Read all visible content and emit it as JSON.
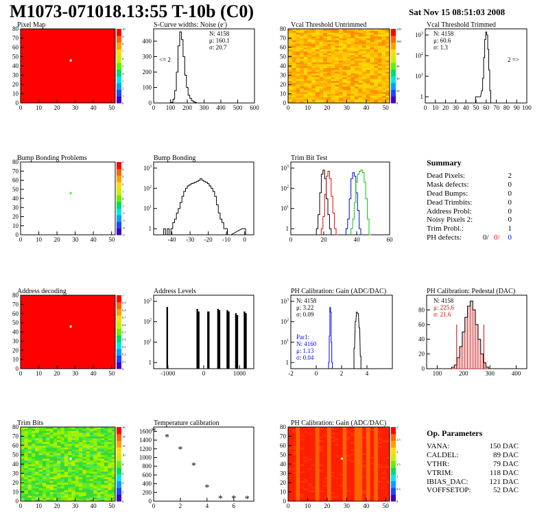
{
  "header": {
    "title": "M1073-071018.13:55 T-10b (C0)",
    "date": "Sat Nov 15 08:51:03 2008"
  },
  "colors": {
    "red": "#ff0000",
    "blue": "#0000ff",
    "green": "#00c800",
    "hatch": "#cc0000"
  },
  "panels": {
    "pixel_map": {
      "title": "Pixel Map",
      "zticks": [
        "10",
        "9",
        "8",
        "7",
        "6",
        "5",
        "4",
        "3",
        "2",
        "1",
        "0"
      ]
    },
    "scurve": {
      "title": "S-Curve widths: Noise (e",
      "stats": [
        "N: 4158",
        "μ: 160.1",
        "σ: 20.7"
      ],
      "underflow": "<= 2"
    },
    "vcal_untrimmed": {
      "title": "Vcal Threshold Untrimmed",
      "zticks": [
        "120",
        "100",
        "80",
        "60",
        "40",
        "20",
        "0"
      ]
    },
    "vcal_trimmed": {
      "title": "Vcal Threshold Trimmed",
      "stats": [
        "N: 4158",
        "μ: 60.6",
        "σ:  1.3"
      ],
      "overflow": "2 =>"
    },
    "bump_problems": {
      "title": "Bump Bonding Problems",
      "zticks": [
        "5",
        "4",
        "3",
        "2",
        "1",
        "0",
        "-1",
        "-2",
        "-3",
        "-4",
        "-5"
      ]
    },
    "bump_bonding": {
      "title": "Bump Bonding"
    },
    "trim_bit_test": {
      "title": "Trim Bit Test"
    },
    "address_decoding": {
      "title": "Address decoding",
      "zticks": [
        "1",
        "0.9",
        "0.8",
        "0.7",
        "0.6",
        "0.5",
        "0.4",
        "0.3",
        "0.2",
        "0.1",
        "0"
      ]
    },
    "address_levels": {
      "title": "Address Levels"
    },
    "ph_gain": {
      "title": "PH Calibration: Gain (ADC/DAC)",
      "stats": [
        "N: 4158",
        "μ: 3.22",
        "σ: 0.09"
      ],
      "par1": [
        "Par1:",
        "N: 4160",
        "μ: 1.13",
        "σ: 0.04"
      ]
    },
    "ph_pedestal": {
      "title": "PH Calibration: Pedestal (DAC)",
      "stats": [
        "N: 4158",
        "μ: 225.6",
        "σ: 21.6"
      ]
    },
    "trim_bits": {
      "title": "Trim Bits",
      "zticks": [
        "16",
        "14",
        "12",
        "10",
        "8",
        "6",
        "4",
        "2",
        "0"
      ]
    },
    "temperature": {
      "title": "Temperature calibration"
    },
    "ph_gain_map": {
      "title": "PH Calibration: Gain (ADC/DAC)",
      "zticks": [
        "3",
        "2.5",
        "2",
        "1.5",
        "1",
        "0.5",
        "0"
      ]
    }
  },
  "summary": {
    "title": "Summary",
    "items": [
      {
        "label": "Dead Pixels:",
        "value": "2"
      },
      {
        "label": "Mask defects:",
        "value": "0"
      },
      {
        "label": "Dead Bumps:",
        "value": "0"
      },
      {
        "label": "Dead Trimbits:",
        "value": "0"
      },
      {
        "label": "Address Probl:",
        "value": "0"
      },
      {
        "label": "Noisy Pixels 2:",
        "value": "0"
      },
      {
        "label": "Trim Probl.:",
        "value": "1"
      }
    ],
    "ph_label": "PH defects:",
    "ph_values": [
      "0/",
      "0/",
      "0"
    ]
  },
  "op_params": {
    "title": "Op. Parameters",
    "items": [
      {
        "label": "VANA:",
        "value": "150 DAC"
      },
      {
        "label": "CALDEL:",
        "value": "89 DAC"
      },
      {
        "label": "VTHR:",
        "value": "79 DAC"
      },
      {
        "label": "VTRIM:",
        "value": "118 DAC"
      },
      {
        "label": "IBIAS_DAC:",
        "value": "121 DAC"
      },
      {
        "label": "VOFFSETOP:",
        "value": "52 DAC"
      }
    ]
  },
  "chart_data": [
    {
      "id": "pixel_map",
      "type": "heatmap",
      "title": "Pixel Map",
      "xlim": [
        0,
        52
      ],
      "ylim": [
        0,
        80
      ],
      "xticks": [
        0,
        10,
        20,
        30,
        40,
        50
      ],
      "yticks": [
        0,
        10,
        20,
        30,
        40,
        50,
        60,
        70,
        80
      ],
      "zlim": [
        0,
        10
      ],
      "fill": "uniform red (all pixels alive)",
      "marked_pixel": {
        "col": 27,
        "row": 46,
        "color": "white"
      }
    },
    {
      "id": "scurve",
      "type": "histogram",
      "xlim": [
        0,
        600
      ],
      "ylim": [
        0,
        480
      ],
      "xticks": [
        0,
        100,
        200,
        300,
        400,
        500,
        600
      ],
      "yticks": [
        0,
        100,
        200,
        300,
        400
      ],
      "x": [
        100,
        110,
        120,
        130,
        140,
        150,
        160,
        170,
        180,
        190,
        200,
        210,
        220,
        230,
        240,
        250,
        260
      ],
      "values": [
        0,
        5,
        25,
        80,
        200,
        370,
        460,
        410,
        300,
        180,
        100,
        50,
        30,
        15,
        8,
        4,
        0
      ]
    },
    {
      "id": "vcal_untrimmed",
      "type": "heatmap",
      "xlim": [
        0,
        52
      ],
      "ylim": [
        0,
        80
      ],
      "xticks": [
        0,
        10,
        20,
        30,
        40,
        50
      ],
      "yticks": [
        0,
        10,
        20,
        30,
        40,
        50,
        60,
        70,
        80
      ],
      "zlim": [
        0,
        130
      ],
      "fill": "orange/yellow noise"
    },
    {
      "id": "vcal_trimmed",
      "type": "histogram",
      "log_y": true,
      "xlim": [
        0,
        100
      ],
      "ylim": [
        0.5,
        2000
      ],
      "xticks": [
        0,
        10,
        20,
        30,
        40,
        50,
        60,
        70,
        80,
        90,
        100
      ],
      "x": [
        50,
        52,
        54,
        56,
        57,
        58,
        59,
        60,
        61,
        62,
        63,
        64,
        65
      ],
      "values": [
        1,
        1,
        1,
        2,
        8,
        80,
        600,
        1400,
        1000,
        200,
        20,
        2,
        0
      ]
    },
    {
      "id": "bump_problems",
      "type": "heatmap",
      "xlim": [
        0,
        52
      ],
      "ylim": [
        0,
        80
      ],
      "xticks": [
        0,
        10,
        20,
        30,
        40,
        50
      ],
      "yticks": [
        0,
        10,
        20,
        30,
        40,
        50,
        60,
        70,
        80
      ],
      "zlim": [
        -5,
        5
      ],
      "fill": "white",
      "marked_pixel": {
        "col": 27,
        "row": 46,
        "color": "#44ee44"
      }
    },
    {
      "id": "bump_bonding",
      "type": "histogram",
      "log_y": true,
      "xlim": [
        -50,
        5
      ],
      "ylim": [
        0.5,
        2000
      ],
      "xticks": [
        -40,
        -30,
        -20,
        -10,
        0
      ],
      "x": [
        -44,
        -43,
        -42,
        -41,
        -40,
        -39,
        -38,
        -37,
        -36,
        -35,
        -34,
        -33,
        -32,
        -31,
        -30,
        -29,
        -28,
        -27,
        -26,
        -25,
        -24,
        -23,
        -22,
        -21,
        -20,
        -19,
        -18,
        -17,
        -16,
        -15,
        -14,
        -13,
        -12,
        -11,
        -10,
        -9,
        -8,
        -1,
        0
      ],
      "values": [
        1,
        0,
        1,
        0,
        1,
        2,
        3,
        6,
        10,
        20,
        40,
        70,
        100,
        130,
        150,
        170,
        180,
        200,
        220,
        250,
        300,
        250,
        220,
        200,
        170,
        130,
        100,
        70,
        40,
        15,
        6,
        3,
        2,
        1,
        1,
        0,
        0,
        1,
        1
      ]
    },
    {
      "id": "trim_bit_test",
      "type": "histogram",
      "log_y": true,
      "xlim": [
        0,
        60
      ],
      "ylim": [
        0.5,
        2000
      ],
      "xticks": [
        0,
        20,
        40,
        60
      ],
      "series": [
        {
          "color": "black",
          "x": [
            16,
            17,
            18,
            19,
            20,
            21,
            22,
            23,
            24,
            25
          ],
          "values": [
            1,
            5,
            60,
            500,
            800,
            300,
            30,
            5,
            1,
            0
          ]
        },
        {
          "color": "red",
          "x": [
            19,
            20,
            21,
            22,
            23,
            24,
            25,
            26,
            27,
            28
          ],
          "values": [
            1,
            4,
            50,
            400,
            700,
            300,
            40,
            6,
            1,
            0
          ]
        },
        {
          "color": "blue",
          "x": [
            34,
            35,
            36,
            37,
            38,
            39,
            40,
            41,
            42,
            43
          ],
          "values": [
            1,
            3,
            30,
            300,
            600,
            400,
            60,
            8,
            1,
            0
          ]
        },
        {
          "color": "green",
          "x": [
            37,
            38,
            39,
            40,
            41,
            42,
            43,
            44,
            45,
            46,
            47,
            48
          ],
          "values": [
            1,
            3,
            20,
            200,
            500,
            700,
            800,
            600,
            200,
            30,
            3,
            0
          ]
        }
      ]
    },
    {
      "id": "address_decoding",
      "type": "heatmap",
      "xlim": [
        0,
        52
      ],
      "ylim": [
        0,
        80
      ],
      "xticks": [
        0,
        10,
        20,
        30,
        40,
        50
      ],
      "yticks": [
        0,
        10,
        20,
        30,
        40,
        50,
        60,
        70,
        80
      ],
      "zlim": [
        0,
        1
      ],
      "fill": "uniform red",
      "marked_pixel": {
        "col": 27,
        "row": 46,
        "color": "white"
      }
    },
    {
      "id": "address_levels",
      "type": "histogram",
      "log_y": true,
      "xlim": [
        -1400,
        1400
      ],
      "ylim": [
        0.5,
        2000
      ],
      "xticks": [
        -1000,
        0,
        1000
      ],
      "x": [
        -1020,
        -180,
        -140,
        120,
        140,
        400,
        440,
        660,
        700,
        900,
        940,
        1140,
        1180
      ],
      "values": [
        500,
        400,
        300,
        300,
        300,
        400,
        350,
        350,
        300,
        250,
        200,
        300,
        250
      ]
    },
    {
      "id": "ph_gain",
      "type": "histogram",
      "log_y": true,
      "xlim": [
        -2,
        6
      ],
      "ylim": [
        0.5,
        2000
      ],
      "xticks": [
        -2,
        0,
        2,
        4
      ],
      "series": [
        {
          "name": "Par1",
          "color": "blue",
          "x": [
            1.0,
            1.05,
            1.1,
            1.15,
            1.2,
            1.25
          ],
          "values": [
            1,
            20,
            500,
            300,
            10,
            1
          ]
        },
        {
          "color": "black",
          "x": [
            3.0,
            3.1,
            3.2,
            3.3,
            3.4,
            3.5
          ],
          "values": [
            5,
            100,
            300,
            250,
            50,
            2
          ]
        }
      ]
    },
    {
      "id": "ph_pedestal",
      "type": "histogram",
      "xlim": [
        60,
        440
      ],
      "ylim": [
        0,
        100
      ],
      "xticks": [
        100,
        200,
        300,
        400
      ],
      "yticks": [
        0,
        20,
        40,
        60,
        80
      ],
      "x": [
        160,
        170,
        180,
        190,
        200,
        210,
        220,
        230,
        240,
        250,
        260,
        270,
        280,
        290
      ],
      "values": [
        2,
        5,
        15,
        30,
        50,
        70,
        85,
        92,
        80,
        60,
        40,
        20,
        8,
        2
      ],
      "fit_color": "red",
      "range_markers": [
        174,
        277
      ]
    },
    {
      "id": "trim_bits",
      "type": "heatmap",
      "xlim": [
        0,
        52
      ],
      "ylim": [
        0,
        80
      ],
      "xticks": [
        0,
        10,
        20,
        30,
        40,
        50
      ],
      "yticks": [
        0,
        10,
        20,
        30,
        40,
        50,
        60,
        70,
        80
      ],
      "zlim": [
        0,
        16
      ],
      "fill": "green/yellow noise",
      "marked_pixel": {
        "col": 27,
        "row": 46,
        "color": "white"
      }
    },
    {
      "id": "temperature",
      "type": "scatter",
      "xlim": [
        0,
        7.5
      ],
      "ylim": [
        0,
        1700
      ],
      "xticks": [
        0,
        2,
        4,
        6
      ],
      "yticks": [
        0,
        200,
        400,
        600,
        800,
        1000,
        1200,
        1400,
        1600
      ],
      "x": [
        0,
        1,
        2,
        3,
        4,
        5,
        6,
        7
      ],
      "values": [
        1620,
        1480,
        1200,
        830,
        320,
        70,
        70,
        60
      ]
    },
    {
      "id": "ph_gain_map",
      "type": "heatmap",
      "xlim": [
        0,
        52
      ],
      "ylim": [
        0,
        80
      ],
      "xticks": [
        0,
        10,
        20,
        30,
        40,
        50
      ],
      "yticks": [
        0,
        10,
        20,
        30,
        40,
        50,
        60,
        70,
        80
      ],
      "zlim": [
        0,
        3
      ],
      "fill": "red with orange columns",
      "marked_pixel": {
        "col": 27,
        "row": 46,
        "color": "white"
      }
    }
  ]
}
